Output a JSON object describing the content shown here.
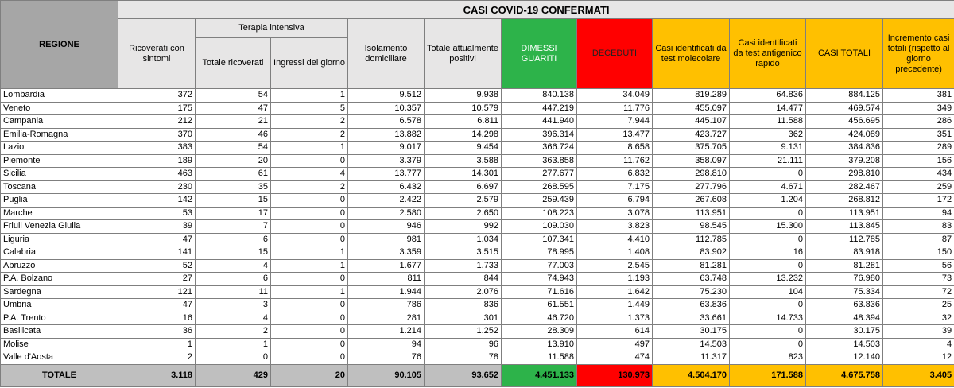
{
  "title": "CASI COVID-19 CONFERMATI",
  "columns": {
    "region": "REGIONE",
    "group": "Terapia intensiva",
    "labels": [
      "Ricoverati con sintomi",
      "Totale ricoverati",
      "Ingressi del giorno",
      "Isolamento domiciliare",
      "Totale attualmente positivi",
      "DIMESSI GUARITI",
      "DECEDUTI",
      "Casi identificati da test molecolare",
      "Casi identificati da test antigenico rapido",
      "CASI TOTALI",
      "Incremento casi totali (rispetto al giorno precedente)"
    ]
  },
  "rows": [
    [
      "Lombardia",
      "372",
      "54",
      "1",
      "9.512",
      "9.938",
      "840.138",
      "34.049",
      "819.289",
      "64.836",
      "884.125",
      "381"
    ],
    [
      "Veneto",
      "175",
      "47",
      "5",
      "10.357",
      "10.579",
      "447.219",
      "11.776",
      "455.097",
      "14.477",
      "469.574",
      "349"
    ],
    [
      "Campania",
      "212",
      "21",
      "2",
      "6.578",
      "6.811",
      "441.940",
      "7.944",
      "445.107",
      "11.588",
      "456.695",
      "286"
    ],
    [
      "Emilia-Romagna",
      "370",
      "46",
      "2",
      "13.882",
      "14.298",
      "396.314",
      "13.477",
      "423.727",
      "362",
      "424.089",
      "351"
    ],
    [
      "Lazio",
      "383",
      "54",
      "1",
      "9.017",
      "9.454",
      "366.724",
      "8.658",
      "375.705",
      "9.131",
      "384.836",
      "289"
    ],
    [
      "Piemonte",
      "189",
      "20",
      "0",
      "3.379",
      "3.588",
      "363.858",
      "11.762",
      "358.097",
      "21.111",
      "379.208",
      "156"
    ],
    [
      "Sicilia",
      "463",
      "61",
      "4",
      "13.777",
      "14.301",
      "277.677",
      "6.832",
      "298.810",
      "0",
      "298.810",
      "434"
    ],
    [
      "Toscana",
      "230",
      "35",
      "2",
      "6.432",
      "6.697",
      "268.595",
      "7.175",
      "277.796",
      "4.671",
      "282.467",
      "259"
    ],
    [
      "Puglia",
      "142",
      "15",
      "0",
      "2.422",
      "2.579",
      "259.439",
      "6.794",
      "267.608",
      "1.204",
      "268.812",
      "172"
    ],
    [
      "Marche",
      "53",
      "17",
      "0",
      "2.580",
      "2.650",
      "108.223",
      "3.078",
      "113.951",
      "0",
      "113.951",
      "94"
    ],
    [
      "Friuli Venezia Giulia",
      "39",
      "7",
      "0",
      "946",
      "992",
      "109.030",
      "3.823",
      "98.545",
      "15.300",
      "113.845",
      "83"
    ],
    [
      "Liguria",
      "47",
      "6",
      "0",
      "981",
      "1.034",
      "107.341",
      "4.410",
      "112.785",
      "0",
      "112.785",
      "87"
    ],
    [
      "Calabria",
      "141",
      "15",
      "1",
      "3.359",
      "3.515",
      "78.995",
      "1.408",
      "83.902",
      "16",
      "83.918",
      "150"
    ],
    [
      "Abruzzo",
      "52",
      "4",
      "1",
      "1.677",
      "1.733",
      "77.003",
      "2.545",
      "81.281",
      "0",
      "81.281",
      "56"
    ],
    [
      "P.A. Bolzano",
      "27",
      "6",
      "0",
      "811",
      "844",
      "74.943",
      "1.193",
      "63.748",
      "13.232",
      "76.980",
      "73"
    ],
    [
      "Sardegna",
      "121",
      "11",
      "1",
      "1.944",
      "2.076",
      "71.616",
      "1.642",
      "75.230",
      "104",
      "75.334",
      "72"
    ],
    [
      "Umbria",
      "47",
      "3",
      "0",
      "786",
      "836",
      "61.551",
      "1.449",
      "63.836",
      "0",
      "63.836",
      "25"
    ],
    [
      "P.A. Trento",
      "16",
      "4",
      "0",
      "281",
      "301",
      "46.720",
      "1.373",
      "33.661",
      "14.733",
      "48.394",
      "32"
    ],
    [
      "Basilicata",
      "36",
      "2",
      "0",
      "1.214",
      "1.252",
      "28.309",
      "614",
      "30.175",
      "0",
      "30.175",
      "39"
    ],
    [
      "Molise",
      "1",
      "1",
      "0",
      "94",
      "96",
      "13.910",
      "497",
      "14.503",
      "0",
      "14.503",
      "4"
    ],
    [
      "Valle d'Aosta",
      "2",
      "0",
      "0",
      "76",
      "78",
      "11.588",
      "474",
      "11.317",
      "823",
      "12.140",
      "12"
    ]
  ],
  "total": [
    "TOTALE",
    "3.118",
    "429",
    "20",
    "90.105",
    "93.652",
    "4.451.133",
    "130.973",
    "4.504.170",
    "171.588",
    "4.675.758",
    "3.405"
  ]
}
